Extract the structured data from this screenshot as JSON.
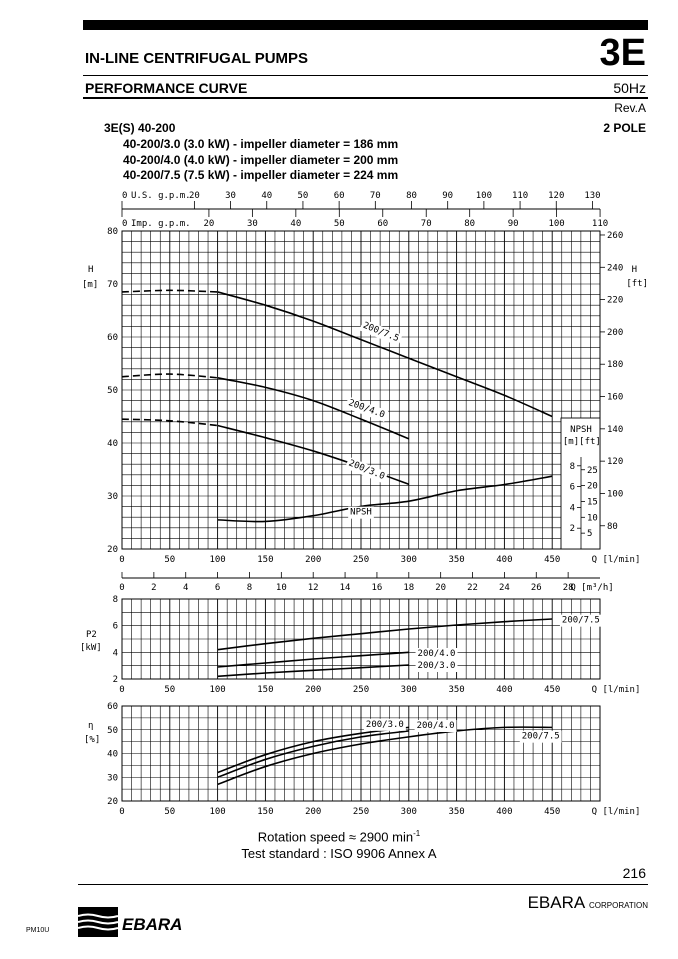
{
  "header": {
    "title": "IN-LINE CENTRIFUGAL PUMPS",
    "code": "3E",
    "subtitle": "PERFORMANCE CURVE",
    "frequency": "50Hz",
    "revision": "Rev.A"
  },
  "model": {
    "name": "3E(S) 40-200",
    "poles": "2 POLE",
    "variants": [
      "40-200/3.0 (3.0 kW) - impeller diameter = 186 mm",
      "40-200/4.0 (4.0 kW) - impeller diameter = 200 mm",
      "40-200/7.5 (7.5 kW) - impeller diameter = 224 mm"
    ]
  },
  "footer": {
    "rotation_speed": "Rotation speed ≈ 2900 min",
    "rotation_unit_exp": "-1",
    "test_standard": "Test standard : ISO 9906 Annex A",
    "page_number": "216",
    "brand": "EBARA",
    "brand_suffix": "CORPORATION",
    "doc_code": "PM10U",
    "logo_text": "EBARA"
  },
  "colors": {
    "ink": "#000000",
    "grid": "#000000",
    "background": "#ffffff"
  },
  "chart_data": [
    {
      "type": "line",
      "id": "head",
      "ylabel": "H",
      "yunit": "[m]",
      "y2label": "H",
      "y2unit": "[ft]",
      "xlabel": "Q [l/min]",
      "xlim": [
        0,
        500
      ],
      "ylim": [
        20,
        80
      ],
      "grid": true,
      "xticks": [
        0,
        50,
        100,
        150,
        200,
        250,
        300,
        350,
        400,
        450
      ],
      "yticks": [
        20,
        30,
        40,
        50,
        60,
        70,
        80
      ],
      "y2ticks": [
        80,
        100,
        120,
        140,
        160,
        180,
        200,
        220,
        240,
        260
      ],
      "top_axes": [
        {
          "label": "U.S. g.p.m.",
          "ticks": [
            0,
            20,
            30,
            40,
            50,
            60,
            70,
            80,
            90,
            100,
            110,
            120,
            130
          ]
        },
        {
          "label": "Imp. g.p.m.",
          "ticks": [
            0,
            20,
            30,
            40,
            50,
            60,
            70,
            80,
            90,
            100,
            110
          ]
        }
      ],
      "bottom_axis2": {
        "label": "Q [m³/h]",
        "ticks": [
          0,
          2,
          4,
          6,
          8,
          10,
          12,
          14,
          16,
          18,
          20,
          22,
          24,
          26,
          28
        ]
      },
      "series": [
        {
          "name": "200/7.5",
          "x": [
            0,
            50,
            100,
            150,
            200,
            250,
            300,
            350,
            400,
            450
          ],
          "y": [
            68.5,
            68.8,
            68.5,
            66,
            63,
            59.5,
            56,
            52.5,
            49,
            45
          ],
          "dashed_below_x": 100
        },
        {
          "name": "200/4.0",
          "x": [
            0,
            50,
            100,
            150,
            200,
            250,
            300
          ],
          "y": [
            52.5,
            53,
            52.3,
            50.5,
            48,
            44.5,
            40.8
          ],
          "dashed_below_x": 100
        },
        {
          "name": "200/3.0",
          "x": [
            0,
            50,
            100,
            150,
            200,
            250,
            300
          ],
          "y": [
            44.5,
            44.2,
            43.3,
            41,
            38.5,
            35.5,
            32.2
          ],
          "dashed_below_x": 100
        }
      ],
      "npsh": {
        "name": "NPSH",
        "axis_title": "NPSH",
        "unit_m": "[m]",
        "unit_ft": "[ft]",
        "m_ticks": [
          2,
          4,
          6,
          8
        ],
        "ft_ticks": [
          5,
          10,
          15,
          20,
          25
        ],
        "x": [
          100,
          150,
          200,
          250,
          300,
          350,
          400,
          450
        ],
        "y_m": [
          2.8,
          2.65,
          3.2,
          4.1,
          4.6,
          5.6,
          6.2,
          7.0
        ]
      }
    },
    {
      "type": "line",
      "id": "power",
      "ylabel": "P2",
      "yunit": "[kW]",
      "xlabel": "Q [l/min]",
      "xlim": [
        0,
        500
      ],
      "ylim": [
        2,
        8
      ],
      "grid": true,
      "xticks": [
        0,
        50,
        100,
        150,
        200,
        250,
        300,
        350,
        400,
        450
      ],
      "yticks": [
        2,
        4,
        6,
        8
      ],
      "series": [
        {
          "name": "200/7.5",
          "x": [
            100,
            150,
            200,
            250,
            300,
            350,
            400,
            450
          ],
          "y": [
            4.2,
            4.65,
            5.05,
            5.4,
            5.75,
            6.05,
            6.3,
            6.5
          ]
        },
        {
          "name": "200/4.0",
          "x": [
            100,
            150,
            200,
            250,
            300
          ],
          "y": [
            2.9,
            3.2,
            3.5,
            3.75,
            4.0
          ]
        },
        {
          "name": "200/3.0",
          "x": [
            100,
            150,
            200,
            250,
            300
          ],
          "y": [
            2.2,
            2.45,
            2.65,
            2.85,
            3.05
          ]
        }
      ]
    },
    {
      "type": "line",
      "id": "efficiency",
      "ylabel": "η",
      "yunit": "[%]",
      "xlabel": "Q [l/min]",
      "xlim": [
        0,
        500
      ],
      "ylim": [
        20,
        60
      ],
      "grid": true,
      "xticks": [
        0,
        50,
        100,
        150,
        200,
        250,
        300,
        350,
        400,
        450
      ],
      "yticks": [
        20,
        30,
        40,
        50,
        60
      ],
      "series": [
        {
          "name": "200/3.0",
          "x": [
            100,
            150,
            200,
            250,
            300
          ],
          "y": [
            32,
            39.5,
            45,
            48.5,
            51
          ]
        },
        {
          "name": "200/4.0",
          "x": [
            100,
            150,
            200,
            250,
            300
          ],
          "y": [
            30,
            37.5,
            43,
            47,
            49.5
          ]
        },
        {
          "name": "200/7.5",
          "x": [
            100,
            150,
            200,
            250,
            300,
            350,
            400,
            450
          ],
          "y": [
            27,
            34.5,
            40,
            44,
            47,
            49.5,
            51,
            51
          ]
        }
      ]
    }
  ]
}
